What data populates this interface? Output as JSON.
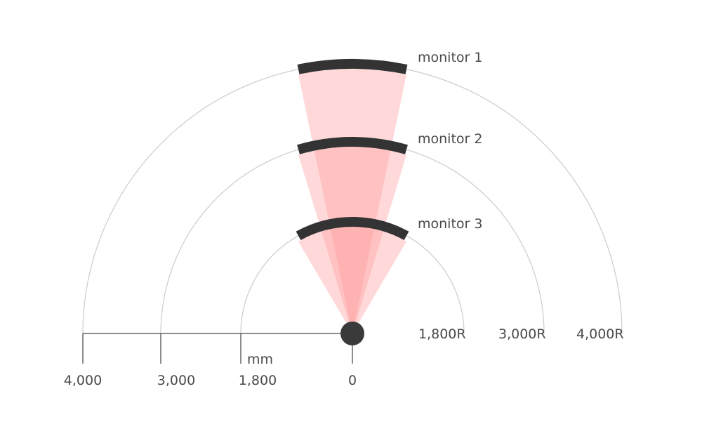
{
  "monitors": [
    {
      "label": "monitor 1",
      "radius_mm": 4000
    },
    {
      "label": "monitor 2",
      "radius_mm": 3000
    },
    {
      "label": "monitor 3",
      "radius_mm": 1800
    }
  ],
  "arc_labels": [
    "4,000R",
    "3,000R",
    "1,800R"
  ],
  "axis": {
    "unit": "mm",
    "ticks": [
      "4,000",
      "3,000",
      "1,800",
      "0"
    ]
  },
  "colors": {
    "monitor": "#333333",
    "viewing_cone": "#ff9a9a",
    "arc": "#cfcfcf",
    "axis": "#666666",
    "viewer": "#3a3a3a"
  }
}
